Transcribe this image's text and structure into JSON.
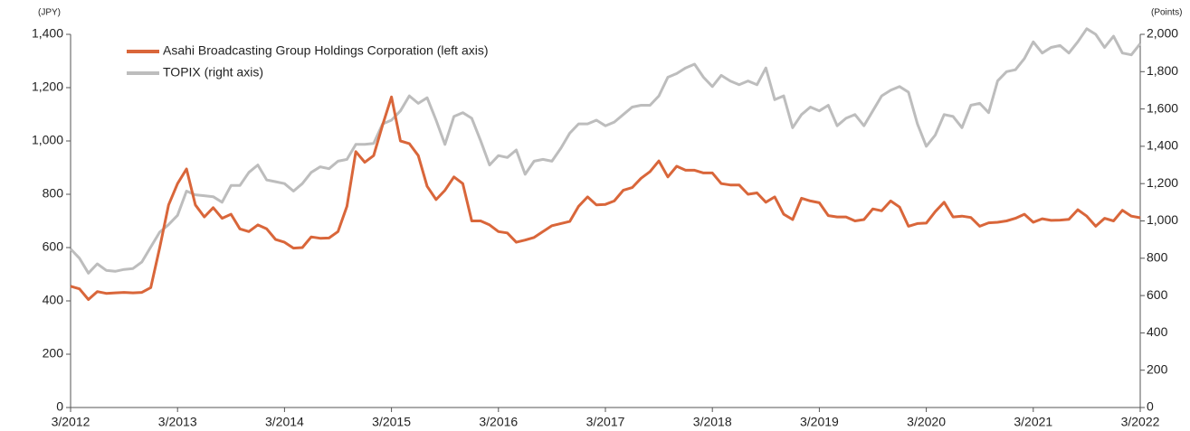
{
  "chart_data": {
    "type": "line",
    "y_label": "(JPY)",
    "y2_label": "(Points)",
    "categories": [
      "3/2012",
      null,
      null,
      null,
      null,
      null,
      null,
      null,
      null,
      null,
      null,
      null,
      "3/2013",
      null,
      null,
      null,
      null,
      null,
      null,
      null,
      null,
      null,
      null,
      null,
      "3/2014",
      null,
      null,
      null,
      null,
      null,
      null,
      null,
      null,
      null,
      null,
      null,
      "3/2015",
      null,
      null,
      null,
      null,
      null,
      null,
      null,
      null,
      null,
      null,
      null,
      "3/2016",
      null,
      null,
      null,
      null,
      null,
      null,
      null,
      null,
      null,
      null,
      null,
      "3/2017",
      null,
      null,
      null,
      null,
      null,
      null,
      null,
      null,
      null,
      null,
      null,
      "3/2018",
      null,
      null,
      null,
      null,
      null,
      null,
      null,
      null,
      null,
      null,
      null,
      "3/2019",
      null,
      null,
      null,
      null,
      null,
      null,
      null,
      null,
      null,
      null,
      null,
      "3/2020",
      null,
      null,
      null,
      null,
      null,
      null,
      null,
      null,
      null,
      null,
      null,
      "3/2021",
      null,
      null,
      null,
      null,
      null,
      null,
      null,
      null,
      null,
      null,
      null,
      "3/2022"
    ],
    "series": [
      {
        "name": "TOPIX (right axis)",
        "color": "#bdbdbd",
        "axis": "y2",
        "values": [
          850,
          800,
          720,
          770,
          735,
          730,
          740,
          745,
          780,
          860,
          940,
          980,
          1030,
          1160,
          1140,
          1135,
          1130,
          1100,
          1190,
          1190,
          1260,
          1300,
          1220,
          1210,
          1200,
          1160,
          1200,
          1260,
          1290,
          1280,
          1320,
          1330,
          1410,
          1410,
          1415,
          1520,
          1540,
          1590,
          1670,
          1630,
          1660,
          1540,
          1410,
          1560,
          1580,
          1550,
          1430,
          1300,
          1350,
          1340,
          1380,
          1250,
          1320,
          1330,
          1320,
          1390,
          1470,
          1520,
          1520,
          1540,
          1510,
          1530,
          1570,
          1610,
          1620,
          1620,
          1670,
          1770,
          1790,
          1820,
          1840,
          1770,
          1720,
          1780,
          1750,
          1730,
          1750,
          1730,
          1820,
          1650,
          1670,
          1500,
          1570,
          1610,
          1590,
          1620,
          1510,
          1550,
          1570,
          1510,
          1590,
          1670,
          1700,
          1720,
          1690,
          1520,
          1400,
          1460,
          1570,
          1560,
          1500,
          1620,
          1630,
          1580,
          1750,
          1800,
          1810,
          1870,
          1960,
          1900,
          1930,
          1940,
          1900,
          1960,
          2030,
          2000,
          1930,
          1990,
          1900,
          1890,
          1950
        ]
      },
      {
        "name": "Asahi Broadcasting Group Holdings Corporation (left axis)",
        "color": "#d9663a",
        "values": [
          455,
          445,
          405,
          435,
          428,
          430,
          432,
          430,
          432,
          450,
          600,
          760,
          840,
          895,
          760,
          715,
          750,
          710,
          725,
          670,
          660,
          685,
          670,
          630,
          620,
          598,
          600,
          640,
          635,
          636,
          660,
          755,
          960,
          920,
          945,
          1060,
          1165,
          1000,
          990,
          945,
          830,
          780,
          815,
          865,
          840,
          700,
          700,
          685,
          660,
          655,
          620,
          628,
          638,
          660,
          682,
          690,
          698,
          755,
          790,
          760,
          762,
          775,
          815,
          825,
          860,
          885,
          925,
          865,
          905,
          890,
          890,
          880,
          880,
          840,
          835,
          835,
          800,
          805,
          770,
          790,
          725,
          705,
          785,
          775,
          768,
          720,
          715,
          715,
          700,
          705,
          745,
          738,
          775,
          752,
          680,
          690,
          692,
          735,
          770,
          715,
          718,
          713,
          680,
          693,
          695,
          700,
          710,
          725,
          695,
          708,
          702,
          703,
          706,
          742,
          718,
          680,
          710,
          700,
          740,
          718,
          712
        ]
      }
    ],
    "ylim": [
      0,
      1400
    ],
    "yticks": [
      0,
      200,
      400,
      600,
      800,
      {
        "value": 1000,
        "label": "1,000"
      },
      {
        "value": 1200,
        "label": "1,200"
      },
      {
        "value": 1400,
        "label": "1,400"
      }
    ],
    "y2lim": [
      0,
      2000
    ],
    "y2ticks": [
      0,
      200,
      400,
      600,
      800,
      {
        "value": 1000,
        "label": "1,000"
      },
      {
        "value": 1200,
        "label": "1,200"
      },
      {
        "value": 1400,
        "label": "1,400"
      },
      {
        "value": 1600,
        "label": "1,600"
      },
      {
        "value": 1800,
        "label": "1,800"
      },
      {
        "value": 2000,
        "label": "2,000"
      }
    ],
    "grid": false,
    "legend": "upper left"
  }
}
